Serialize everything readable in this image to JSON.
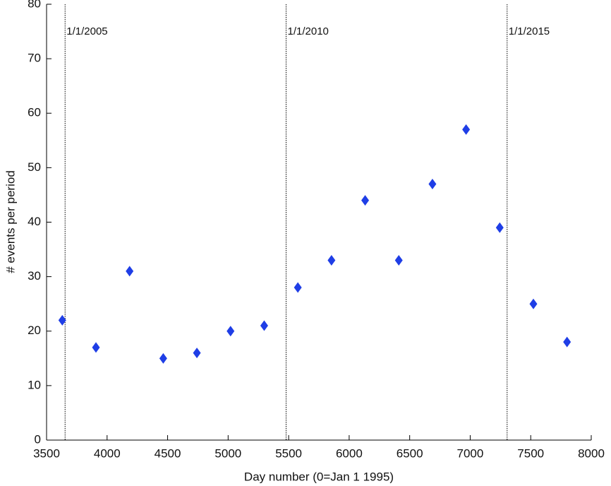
{
  "chart_data": {
    "type": "scatter",
    "xlabel": "Day number (0=Jan 1 1995)",
    "ylabel": "# events per period",
    "x": [
      3630,
      3908,
      4186,
      4464,
      4742,
      5020,
      5298,
      5576,
      5854,
      6132,
      6410,
      6688,
      6966,
      7244,
      7522,
      7800
    ],
    "series": [
      {
        "name": "events",
        "color": "#1f3ee6",
        "values": [
          22,
          17,
          31,
          15,
          16,
          20,
          21,
          28,
          33,
          44,
          33,
          47,
          57,
          39,
          25,
          18
        ]
      }
    ],
    "xlim": [
      3500,
      8000
    ],
    "xticks": [
      3500,
      4000,
      4500,
      5000,
      5500,
      6000,
      6500,
      7000,
      7500,
      8000
    ],
    "ylim": [
      0,
      80
    ],
    "yticks": [
      0,
      10,
      20,
      30,
      40,
      50,
      60,
      70,
      80
    ],
    "annotations": [
      {
        "x": 3653,
        "label": "1/1/2005"
      },
      {
        "x": 5479,
        "label": "1/1/2010"
      },
      {
        "x": 7305,
        "label": "1/1/2015"
      }
    ],
    "grid": false
  }
}
